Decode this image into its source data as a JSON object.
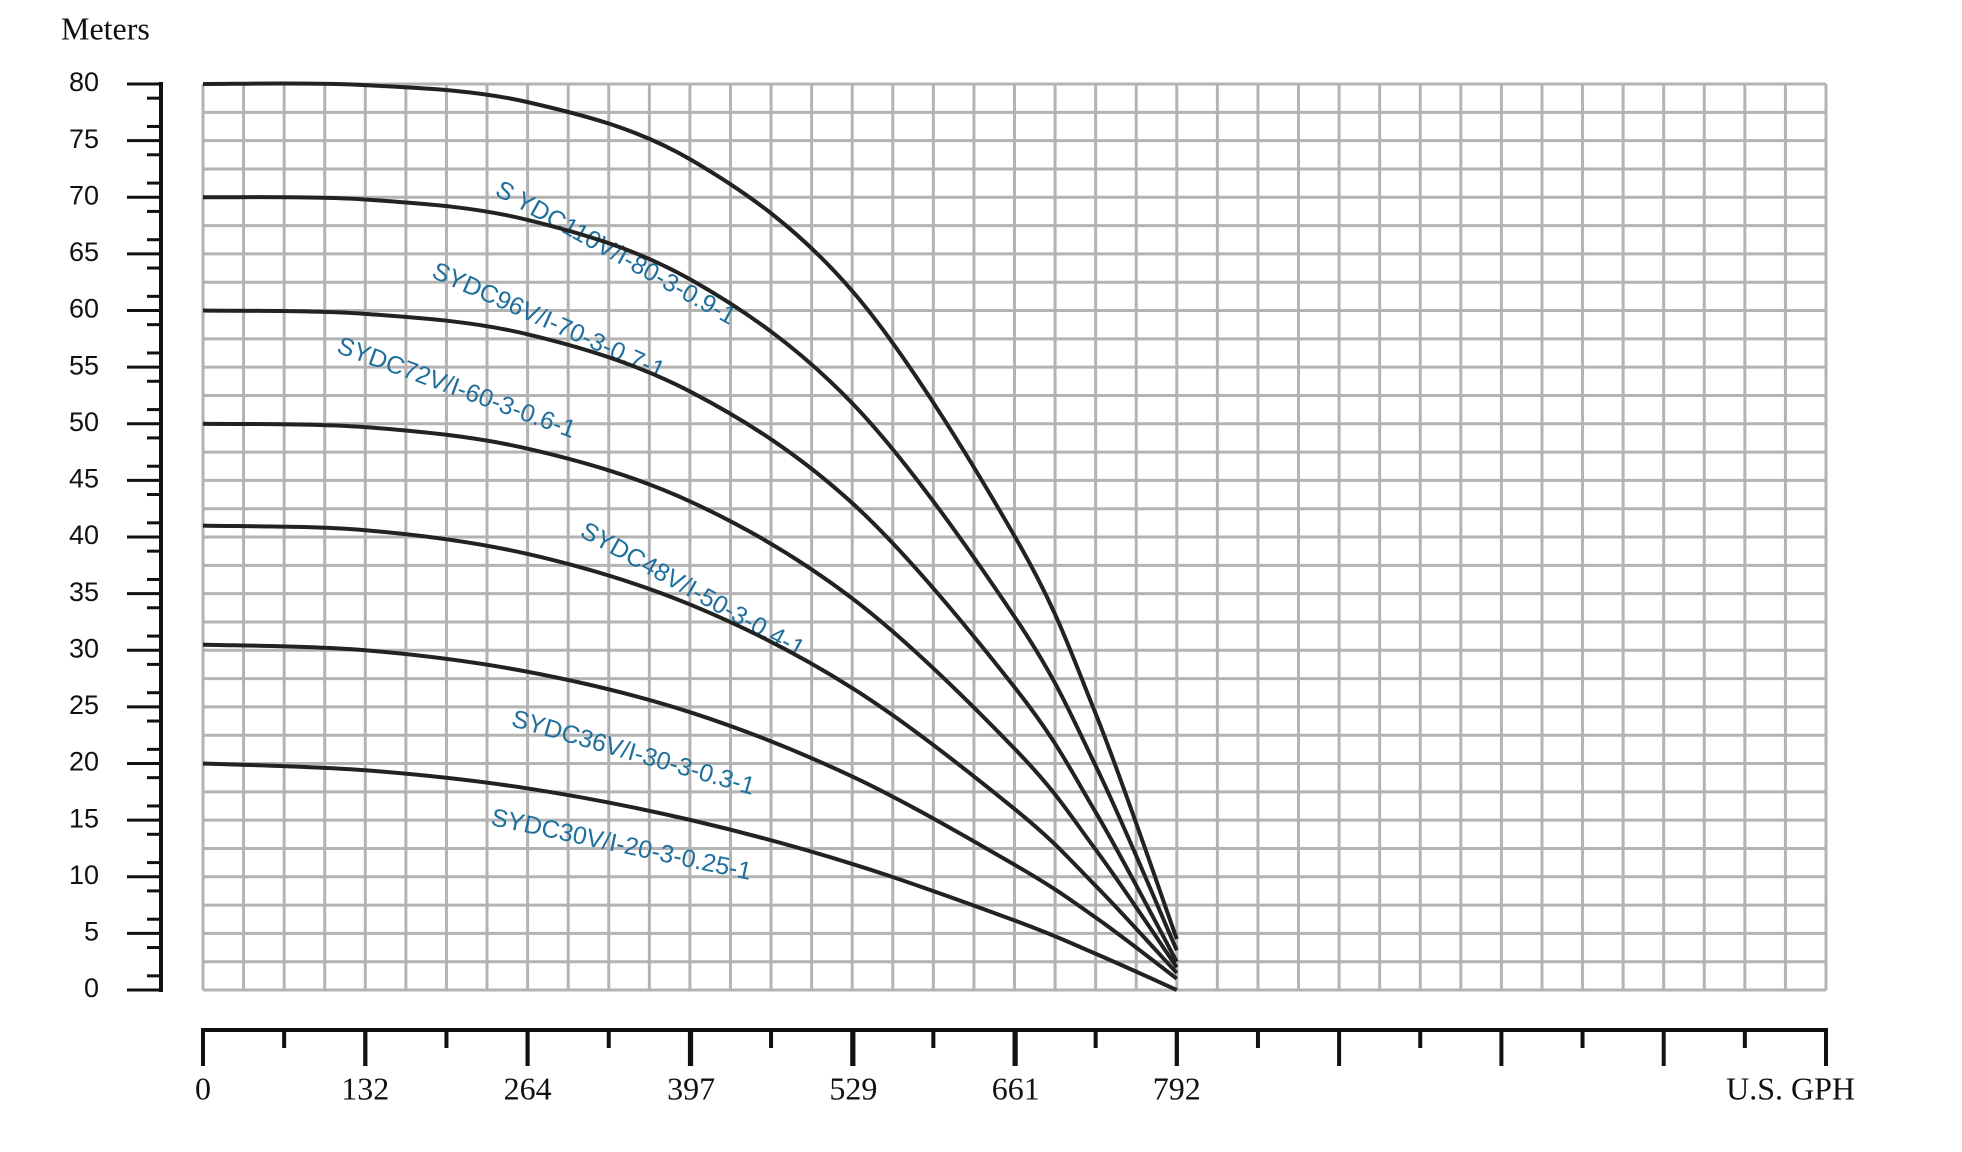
{
  "chart_data": {
    "type": "line",
    "y_label": "Meters",
    "x_label": "U.S. GPH",
    "x": [
      0,
      132,
      264,
      397,
      529,
      661,
      726,
      792
    ],
    "xlim": [
      0,
      1320
    ],
    "xticks": [
      0,
      132,
      264,
      397,
      529,
      661,
      792
    ],
    "ylim": [
      0,
      80
    ],
    "yticks": [
      0,
      5,
      10,
      15,
      20,
      25,
      30,
      35,
      40,
      45,
      50,
      55,
      60,
      65,
      70,
      75,
      80
    ],
    "grid": true,
    "series": [
      {
        "name": "S YDC110V/I-80-3-0.9-1",
        "color": "#222222",
        "values": [
          80,
          79.9,
          78.4,
          73.3,
          61.6,
          39.9,
          24.4,
          4.5
        ]
      },
      {
        "name": "SYDC96V/I-70-3-0.7-1",
        "color": "#222222",
        "values": [
          70,
          69.8,
          68.0,
          62.7,
          51.7,
          32.8,
          19.8,
          3.5
        ]
      },
      {
        "name": "SYDC72V/I-60-3-0.6-1",
        "color": "#222222",
        "values": [
          60,
          59.7,
          57.9,
          52.8,
          42.9,
          26.6,
          15.7,
          2.5
        ]
      },
      {
        "name": "SYDC48V/I-50-3-0.4-1",
        "color": "#222222",
        "values": [
          50,
          49.7,
          47.8,
          43.1,
          34.5,
          21.2,
          12.4,
          2
        ]
      },
      {
        "name": null,
        "color": "#222222",
        "values": [
          41,
          40.6,
          38.5,
          34.0,
          26.6,
          15.9,
          9.2,
          1.5
        ]
      },
      {
        "name": "SYDC36V/I-30-3-0.3-1",
        "color": "#222222",
        "values": [
          30.5,
          30.0,
          28.1,
          24.5,
          18.8,
          11.0,
          6.4,
          1
        ]
      },
      {
        "name": "SYDC30V/I-20-3-0.25-1",
        "color": "#222222",
        "values": [
          20,
          19.4,
          17.8,
          15.0,
          11.1,
          6.1,
          3.2,
          0
        ]
      }
    ]
  }
}
